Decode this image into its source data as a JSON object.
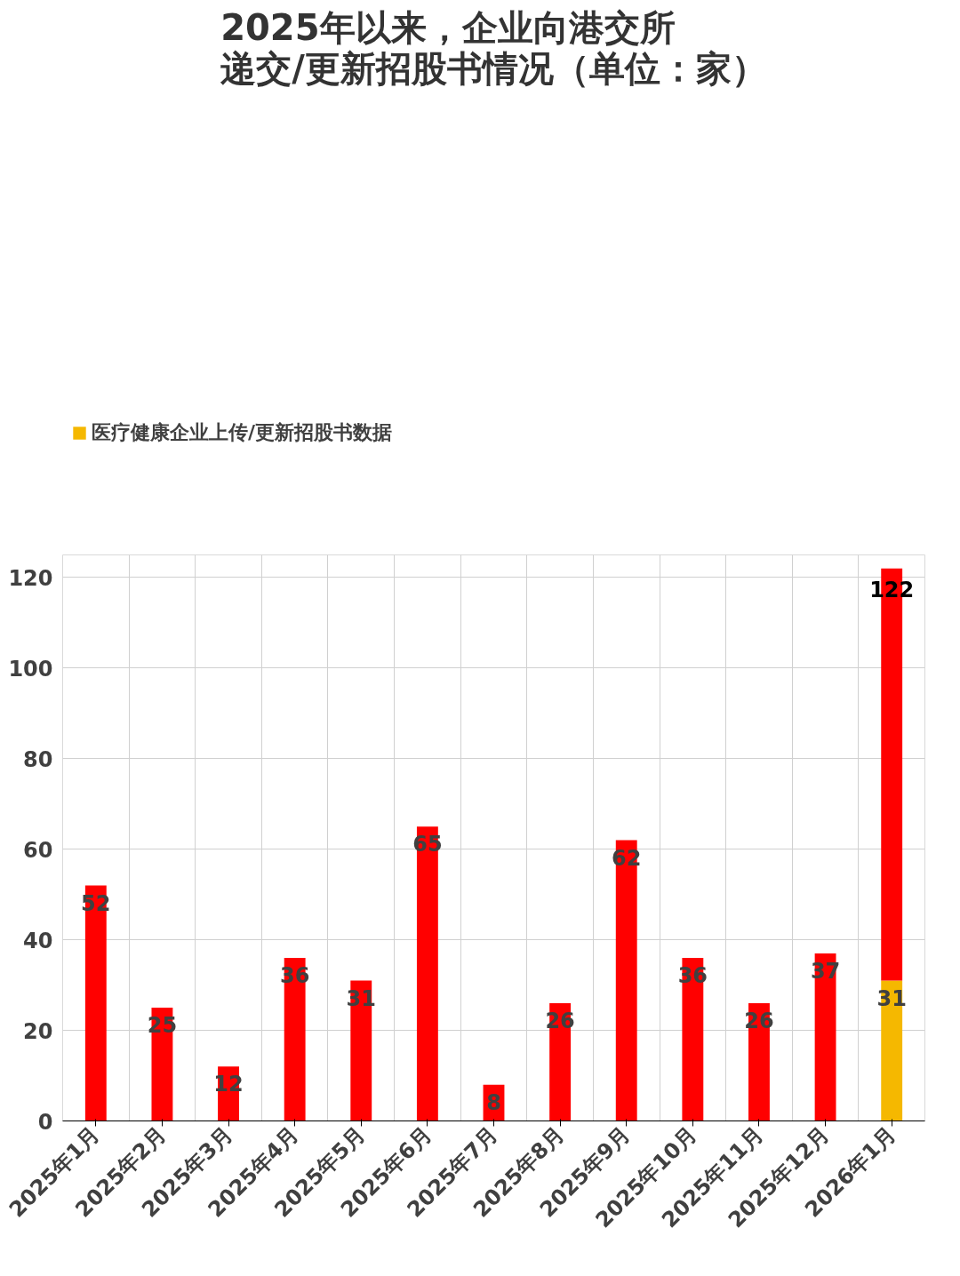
{
  "chart_data": {
    "type": "bar",
    "title": "2025年以来，企业向港交所递交/更新招股书情况（单位：家）",
    "categories": [
      "2025年1月",
      "2025年2月",
      "2025年3月",
      "2025年4月",
      "2025年5月",
      "2025年6月",
      "2025年7月",
      "2025年8月",
      "2025年9月",
      "2025年10月",
      "2025年11月",
      "2025年12月",
      "2026年1月"
    ],
    "stacked": true,
    "series": [
      {
        "name": "医疗健康企业上传/更新招股书数据",
        "color": "#f5b800",
        "values": [
          null,
          null,
          null,
          null,
          null,
          null,
          null,
          null,
          null,
          null,
          null,
          null,
          31
        ],
        "value_labels": [
          null,
          null,
          null,
          null,
          null,
          null,
          null,
          null,
          null,
          null,
          null,
          null,
          "31"
        ]
      },
      {
        "color": "#ff0000",
        "values": [
          52,
          25,
          12,
          36,
          31,
          65,
          8,
          26,
          62,
          36,
          26,
          37,
          91
        ],
        "value_labels": [
          "52",
          "25",
          "12",
          "36",
          "31",
          "65",
          "8",
          "26",
          "62",
          "36",
          "26",
          "37",
          null
        ]
      }
    ],
    "totals": [
      null,
      null,
      null,
      null,
      null,
      null,
      null,
      null,
      null,
      null,
      null,
      null,
      "122"
    ],
    "ylim": [
      0,
      125
    ],
    "yticks": [
      0,
      20,
      40,
      60,
      80,
      100,
      120
    ],
    "grid": true,
    "legend": "top left"
  }
}
